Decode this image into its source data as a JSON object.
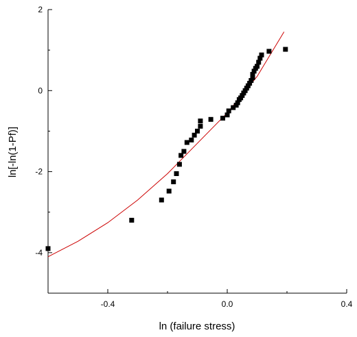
{
  "chart_data": {
    "type": "scatter",
    "title": "",
    "xlabel": "ln (failure stress)",
    "ylabel": "ln[-ln(1-Pf)]",
    "xlim": [
      -0.6,
      0.4
    ],
    "ylim": [
      -5,
      2
    ],
    "xticks": [
      -0.4,
      0.0,
      0.4
    ],
    "xtick_labels": [
      "-0.4",
      "0.0",
      "0.4"
    ],
    "yticks": [
      -4,
      -2,
      0,
      2
    ],
    "ytick_labels": [
      "-4",
      "-2",
      "0",
      "2"
    ],
    "grid": false,
    "legend": "none",
    "colors": {
      "points": "#000000",
      "fit": "#cc0000",
      "axes": "#000000"
    },
    "series": [
      {
        "type": "scatter",
        "marker": "square",
        "x": [
          -0.6,
          -0.32,
          -0.22,
          -0.195,
          -0.18,
          -0.17,
          -0.16,
          -0.155,
          -0.145,
          -0.135,
          -0.12,
          -0.11,
          -0.1,
          -0.09,
          -0.09,
          -0.055,
          -0.015,
          0.0,
          0.005,
          0.02,
          0.03,
          0.035,
          0.04,
          0.045,
          0.05,
          0.055,
          0.06,
          0.065,
          0.07,
          0.075,
          0.08,
          0.085,
          0.085,
          0.09,
          0.095,
          0.1,
          0.105,
          0.11,
          0.115,
          0.14,
          0.195
        ],
        "y": [
          -3.9,
          -3.2,
          -2.7,
          -2.48,
          -2.25,
          -2.05,
          -1.82,
          -1.6,
          -1.5,
          -1.28,
          -1.22,
          -1.1,
          -1.0,
          -0.88,
          -0.75,
          -0.71,
          -0.68,
          -0.6,
          -0.5,
          -0.42,
          -0.36,
          -0.3,
          -0.22,
          -0.18,
          -0.12,
          -0.06,
          0.0,
          0.06,
          0.12,
          0.18,
          0.25,
          0.32,
          0.4,
          0.48,
          0.55,
          0.6,
          0.7,
          0.8,
          0.88,
          0.97,
          1.02
        ]
      },
      {
        "type": "line",
        "x": [
          -0.6,
          -0.5,
          -0.4,
          -0.3,
          -0.2,
          -0.1,
          0.0,
          0.1,
          0.19
        ],
        "y": [
          -4.1,
          -3.72,
          -3.26,
          -2.7,
          -2.05,
          -1.3,
          -0.55,
          0.35,
          1.45
        ]
      }
    ]
  }
}
